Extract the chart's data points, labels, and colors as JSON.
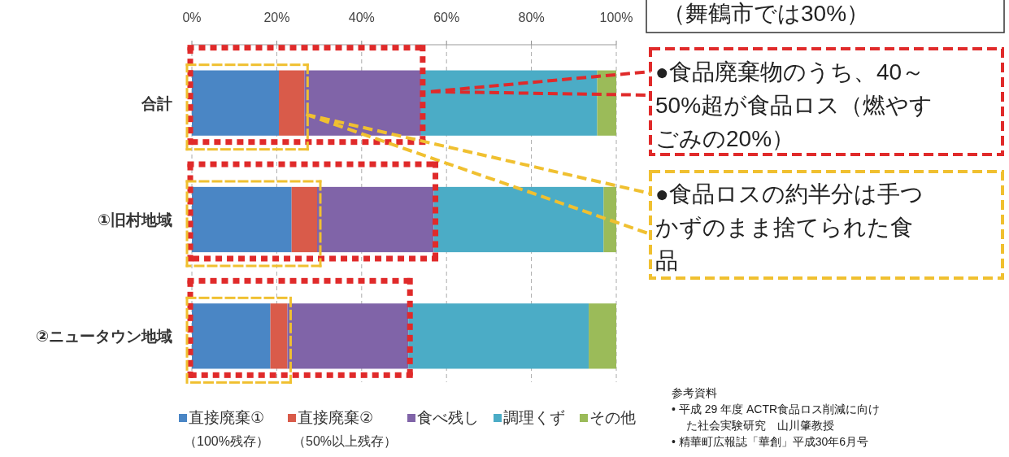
{
  "chart_data": {
    "type": "bar",
    "orientation": "horizontal",
    "stacked": true,
    "categories": [
      "合計",
      "①旧村地域",
      "②ニュータウン地域"
    ],
    "series": [
      {
        "name": "直接廃棄①\n（100%残存）",
        "color": "#4a86c5",
        "values": [
          20.5,
          23.5,
          18.5
        ]
      },
      {
        "name": "直接廃棄②\n（50%以上残存）",
        "color": "#d95b4a",
        "values": [
          6,
          6,
          4
        ]
      },
      {
        "name": "食べ残し",
        "color": "#8064a8",
        "values": [
          27.5,
          27.5,
          28.5
        ]
      },
      {
        "name": "調理くず",
        "color": "#4bacc6",
        "values": [
          41.5,
          40,
          42.5
        ]
      },
      {
        "name": "その他",
        "color": "#9bbb59",
        "values": [
          4.5,
          3,
          6.5
        ]
      }
    ],
    "xlim": [
      0,
      100
    ],
    "xticks": [
      {
        "value": 0,
        "label": "0%"
      },
      {
        "value": 20,
        "label": "20%"
      },
      {
        "value": 40,
        "label": "40%"
      },
      {
        "value": 60,
        "label": "60%"
      },
      {
        "value": 80,
        "label": "80%"
      },
      {
        "value": 100,
        "label": "100%"
      }
    ],
    "grid": "x",
    "legend": "bottom",
    "annotations": [
      "（舞鶴市では30%）",
      "●食品廃棄物のうち、40～50%超が食品ロス（燃やすごみの20%）",
      "●食品ロスの約半分は手つかずのまま捨てられた食品",
      "参考資料",
      "•  平成 29 年度 ACTR食品ロス削減に向けた社会実験研究　山川肇教授",
      "•  精華町広報誌「華創」平成30年6月号"
    ]
  }
}
